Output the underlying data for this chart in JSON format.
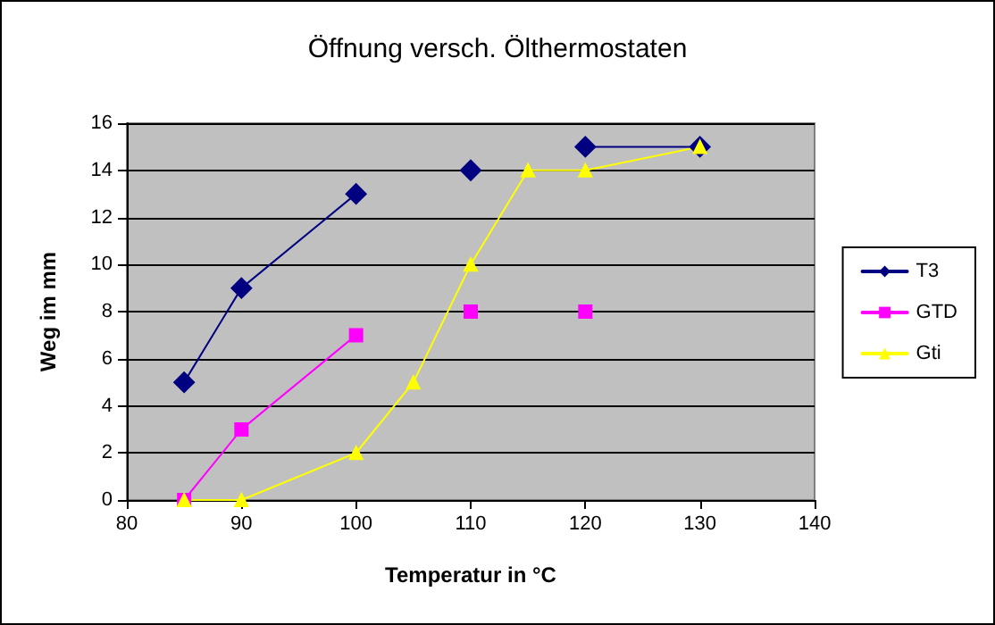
{
  "chart_data": {
    "type": "line",
    "title": "Öffnung versch. Ölthermostaten",
    "xlabel": "Temperatur in °C",
    "ylabel": "Weg im mm",
    "xlim": [
      80,
      140
    ],
    "xticks": [
      80,
      90,
      100,
      110,
      120,
      130,
      140
    ],
    "ylim": [
      0,
      16
    ],
    "yticks": [
      0,
      2,
      4,
      6,
      8,
      10,
      12,
      14,
      16
    ],
    "grid": "y",
    "legend": "right",
    "series": [
      {
        "name": "T3",
        "color": "#000080",
        "marker": "diamond",
        "x": [
          85,
          90,
          100,
          105,
          110,
          115,
          120,
          130
        ],
        "values": [
          5,
          9,
          13,
          null,
          14,
          null,
          15,
          15
        ]
      },
      {
        "name": "GTD",
        "color": "#ff00ff",
        "marker": "square",
        "x": [
          85,
          90,
          100,
          105,
          110,
          115,
          120
        ],
        "values": [
          0,
          3,
          7,
          null,
          8,
          null,
          8
        ]
      },
      {
        "name": "Gti",
        "color": "#ffff00",
        "marker": "triangle",
        "x": [
          85,
          90,
          100,
          105,
          110,
          115,
          120,
          130
        ],
        "values": [
          0,
          0,
          2,
          5,
          10,
          14,
          14,
          15
        ]
      }
    ]
  }
}
